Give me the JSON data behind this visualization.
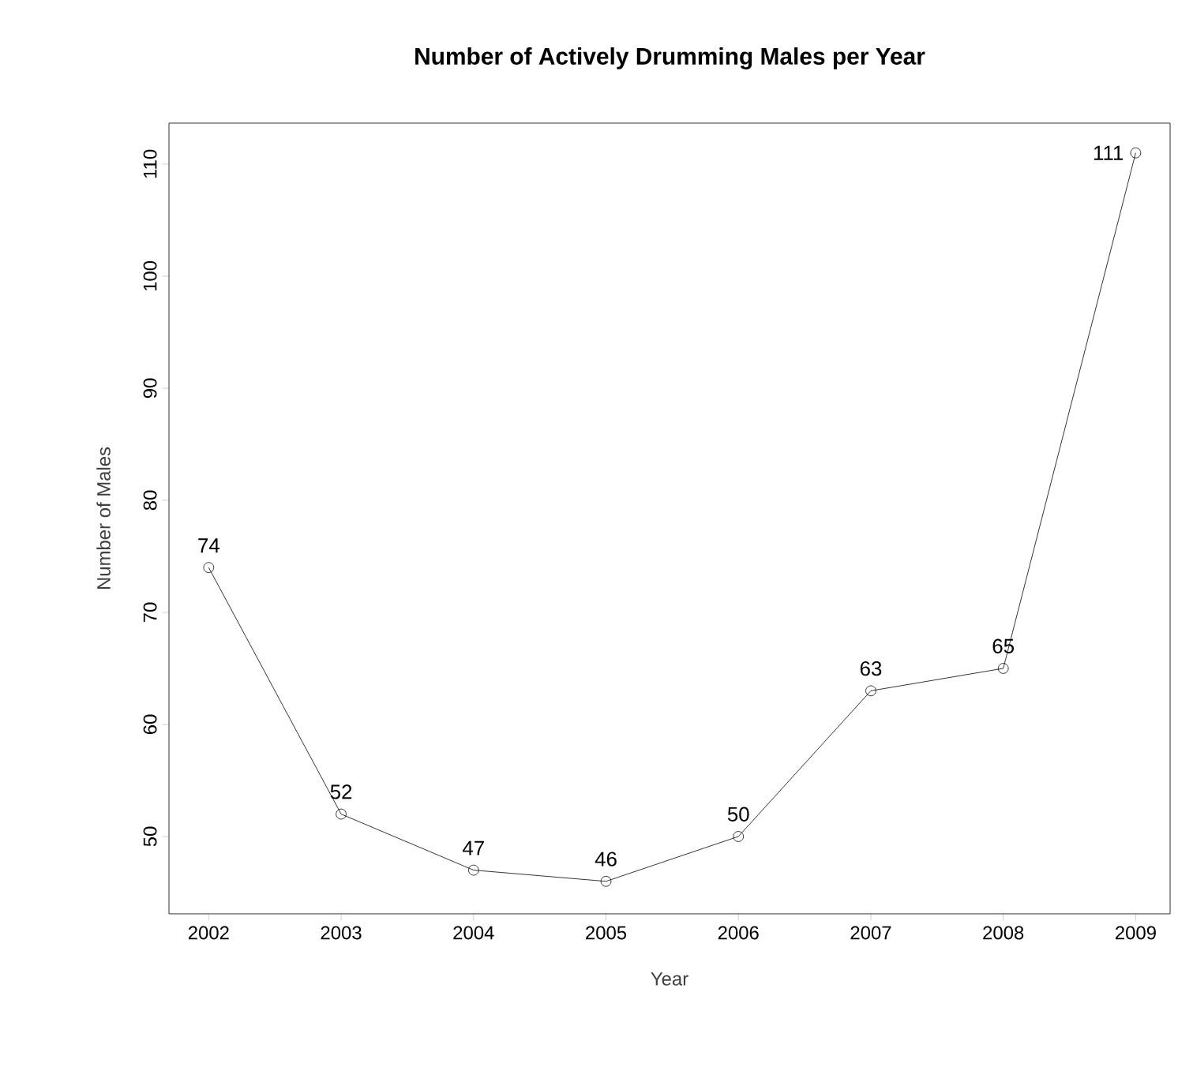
{
  "chart_data": {
    "type": "line",
    "title": "Number of Actively Drumming Males per Year",
    "xlabel": "Year",
    "ylabel": "Number of Males",
    "x": [
      2002,
      2003,
      2004,
      2005,
      2006,
      2007,
      2008,
      2009
    ],
    "values": [
      74,
      52,
      47,
      46,
      50,
      63,
      65,
      111
    ],
    "color": "#000000",
    "marker": "circle",
    "line_style": "solid",
    "data_labels": true,
    "grid": false,
    "xlim": [
      2001.7,
      2009.26
    ],
    "ylim": [
      43.1,
      113.66
    ],
    "xticks": [
      2002,
      2003,
      2004,
      2005,
      2006,
      2007,
      2008,
      2009
    ],
    "yticks": [
      50,
      60,
      70,
      80,
      90,
      100,
      110
    ]
  }
}
